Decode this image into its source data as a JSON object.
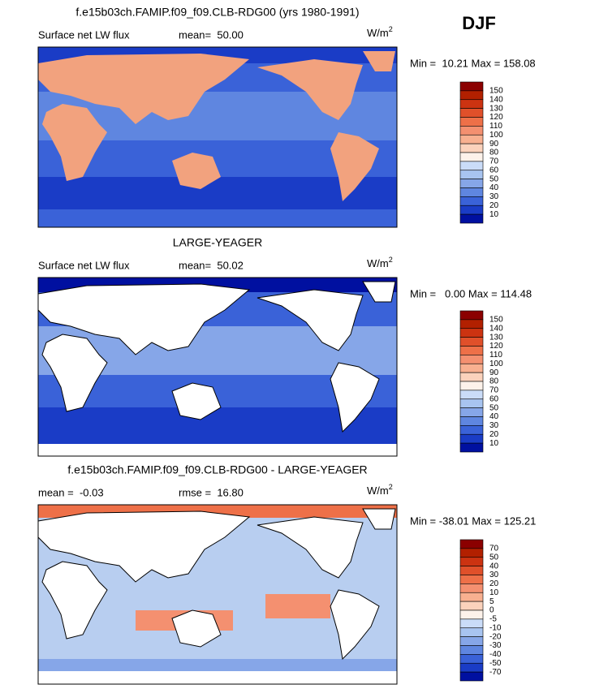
{
  "title": "DJF",
  "panels": [
    {
      "title": "f.e15b03ch.FAMIP.f09_f09.CLB-RDG00 (yrs 1980-1991)",
      "left": "Surface net LW flux",
      "stat": "mean=  50.00",
      "units": "W/m",
      "units_exp": "2",
      "range": "Min =  10.21 Max = 158.08",
      "colorbar": {
        "colors": [
          "#8b0000",
          "#b22000",
          "#cc3311",
          "#e0502a",
          "#ee7048",
          "#f49070",
          "#f8b090",
          "#fbd2bc",
          "#fdf2ea",
          "#cadcf8",
          "#a8c4f0",
          "#86a6e8",
          "#5f86e0",
          "#3a62d8",
          "#1a3cc6",
          "#0010a0"
        ],
        "labels": [
          150,
          140,
          130,
          120,
          110,
          100,
          90,
          80,
          70,
          60,
          50,
          40,
          30,
          20,
          10
        ]
      }
    },
    {
      "title": "LARGE-YEAGER",
      "left": "Surface net LW flux",
      "stat": "mean=  50.02",
      "units": "W/m",
      "units_exp": "2",
      "range": "Min =   0.00 Max = 114.48",
      "colorbar": {
        "colors": [
          "#8b0000",
          "#b22000",
          "#cc3311",
          "#e0502a",
          "#ee7048",
          "#f49070",
          "#f8b090",
          "#fbd2bc",
          "#fdf2ea",
          "#cadcf8",
          "#a8c4f0",
          "#86a6e8",
          "#5f86e0",
          "#3a62d8",
          "#1a3cc6",
          "#0010a0"
        ],
        "labels": [
          150,
          140,
          130,
          120,
          110,
          100,
          90,
          80,
          70,
          60,
          50,
          40,
          30,
          20,
          10
        ]
      }
    },
    {
      "title": "f.e15b03ch.FAMIP.f09_f09.CLB-RDG00 - LARGE-YEAGER",
      "left": "mean =  -0.03",
      "stat": "rmse =  16.80",
      "units": "W/m",
      "units_exp": "2",
      "range": "Min = -38.01 Max = 125.21",
      "colorbar": {
        "colors": [
          "#8b0000",
          "#b22000",
          "#cc3311",
          "#e0502a",
          "#ee7048",
          "#f49070",
          "#f8b090",
          "#fbd2bc",
          "#fdf2ea",
          "#cadcf8",
          "#a8c4f0",
          "#86a6e8",
          "#5f86e0",
          "#3a62d8",
          "#1a3cc6",
          "#0010a0"
        ],
        "labels": [
          70,
          50,
          40,
          30,
          20,
          10,
          5,
          0,
          -5,
          -10,
          -20,
          -30,
          -40,
          -50,
          -70
        ]
      }
    }
  ]
}
